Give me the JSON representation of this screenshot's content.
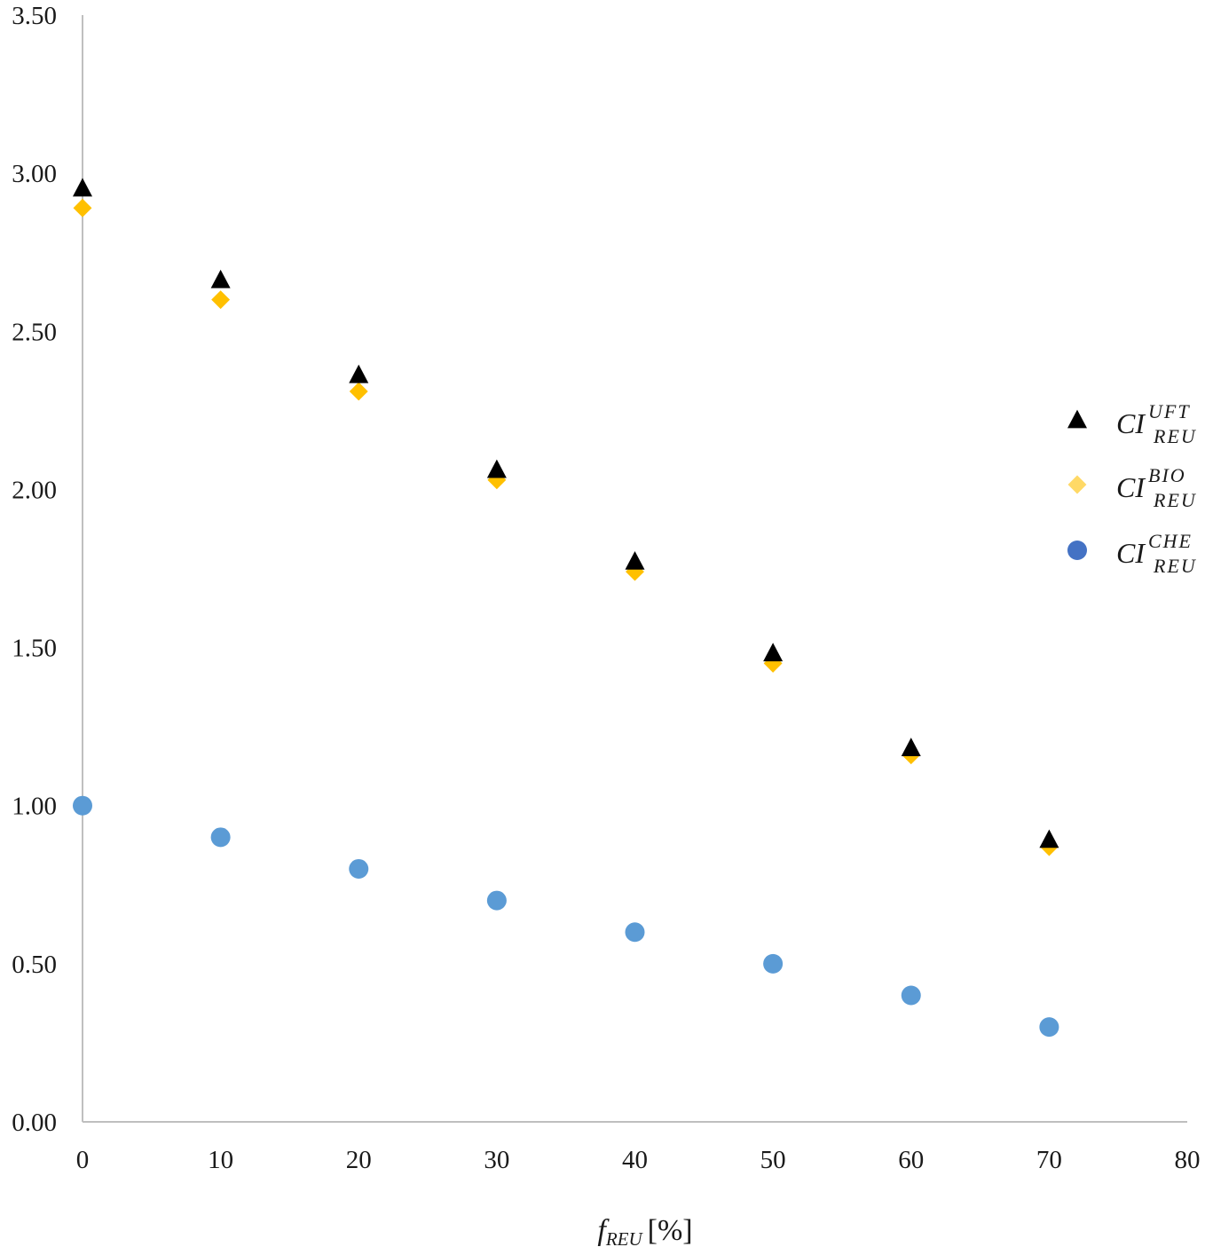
{
  "chart_data": {
    "type": "scatter",
    "xlabel": {
      "main": "f",
      "sub": "REU",
      "unit": "[%]"
    },
    "ylabel": "",
    "xlim": [
      0,
      80
    ],
    "ylim": [
      0,
      3.5
    ],
    "x_ticks": [
      "0",
      "10",
      "20",
      "30",
      "40",
      "50",
      "60",
      "70",
      "80"
    ],
    "y_ticks": [
      "0.00",
      "0.50",
      "1.00",
      "1.50",
      "2.00",
      "2.50",
      "3.00",
      "3.50"
    ],
    "grid": false,
    "legend_position": "right",
    "series": [
      {
        "name": {
          "main": "CI",
          "sup": "UFT",
          "sub": "REU"
        },
        "marker": "triangle",
        "color": "#000000",
        "x": [
          0,
          10,
          20,
          30,
          40,
          50,
          60,
          70
        ],
        "y": [
          2.95,
          2.66,
          2.36,
          2.06,
          1.77,
          1.48,
          1.18,
          0.89
        ]
      },
      {
        "name": {
          "main": "CI",
          "sup": "BIO",
          "sub": "REU"
        },
        "marker": "diamond",
        "color": "#FFC000",
        "legend_color": "#FFD966",
        "x": [
          0,
          10,
          20,
          30,
          40,
          50,
          60,
          70
        ],
        "y": [
          2.89,
          2.6,
          2.31,
          2.03,
          1.74,
          1.45,
          1.16,
          0.87
        ]
      },
      {
        "name": {
          "main": "CI",
          "sup": "CHE",
          "sub": "REU"
        },
        "marker": "circle",
        "color": "#5B9BD5",
        "legend_color": "#4472C4",
        "x": [
          0,
          10,
          20,
          30,
          40,
          50,
          60,
          70
        ],
        "y": [
          1.0,
          0.9,
          0.8,
          0.7,
          0.6,
          0.5,
          0.4,
          0.3
        ]
      }
    ]
  }
}
